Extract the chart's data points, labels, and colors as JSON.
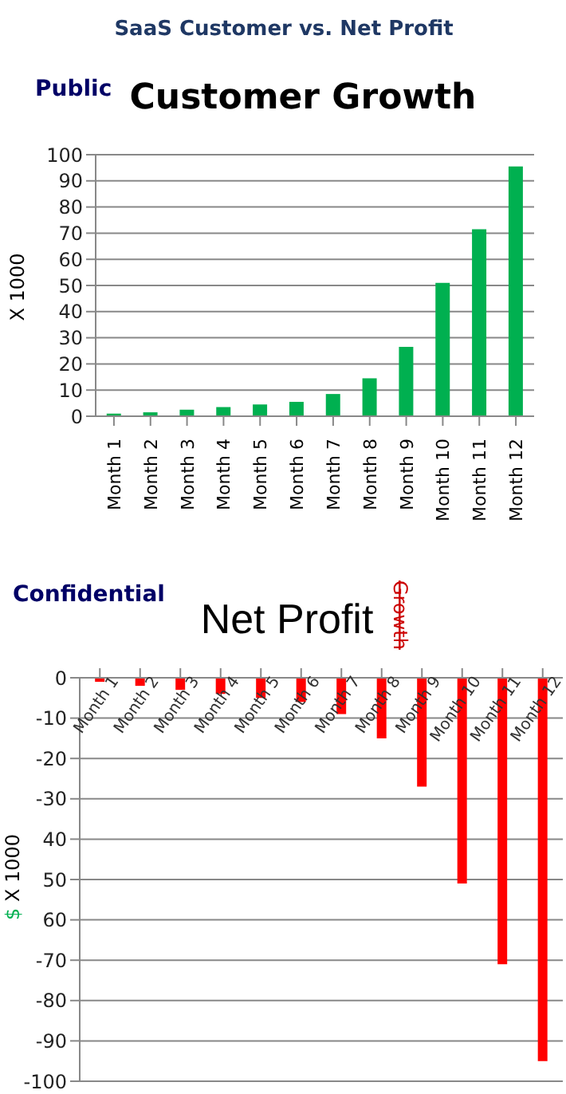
{
  "chart_data": [
    {
      "type": "bar",
      "title": "Customer Growth",
      "ylabel": "X 1000",
      "annotations": [
        "SaaS Customer vs. Net Profit",
        "Public"
      ],
      "categories": [
        "Month 1",
        "Month 2",
        "Month 3",
        "Month 4",
        "Month 5",
        "Month 6",
        "Month 7",
        "Month 8",
        "Month 9",
        "Month 10",
        "Month 11",
        "Month 12"
      ],
      "values": [
        1,
        1.5,
        2.5,
        3.5,
        4.5,
        5.5,
        8.5,
        14.5,
        26.5,
        51,
        71.5,
        95.5
      ],
      "color": "#00b050",
      "ylim": [
        0,
        100
      ],
      "yticks": [
        0,
        10,
        20,
        30,
        40,
        50,
        60,
        70,
        80,
        90,
        100
      ],
      "grid": "y"
    },
    {
      "type": "bar",
      "title": "Net Profit",
      "ylabel": "$ X 1000",
      "annotations": [
        "Confidential",
        "Growth"
      ],
      "categories": [
        "Month 1",
        "Month 2",
        "Month 3",
        "Month 4",
        "Month 5",
        "Month 6",
        "Month 7",
        "Month 8",
        "Month 9",
        "Month 10",
        "Month 11",
        "Month 12"
      ],
      "values": [
        -1,
        -2,
        -3,
        -4,
        -5,
        -6,
        -9,
        -15,
        -27,
        -51,
        -71,
        -95
      ],
      "color": "#ff0000",
      "ylim": [
        -100,
        0
      ],
      "yticks": [
        0,
        -10,
        -20,
        -30,
        {
          "value": -40,
          "label": "40"
        },
        {
          "value": -50,
          "label": "50"
        },
        {
          "value": -60,
          "label": "60"
        },
        -70,
        -80,
        -90,
        -100
      ],
      "grid": "y"
    }
  ]
}
